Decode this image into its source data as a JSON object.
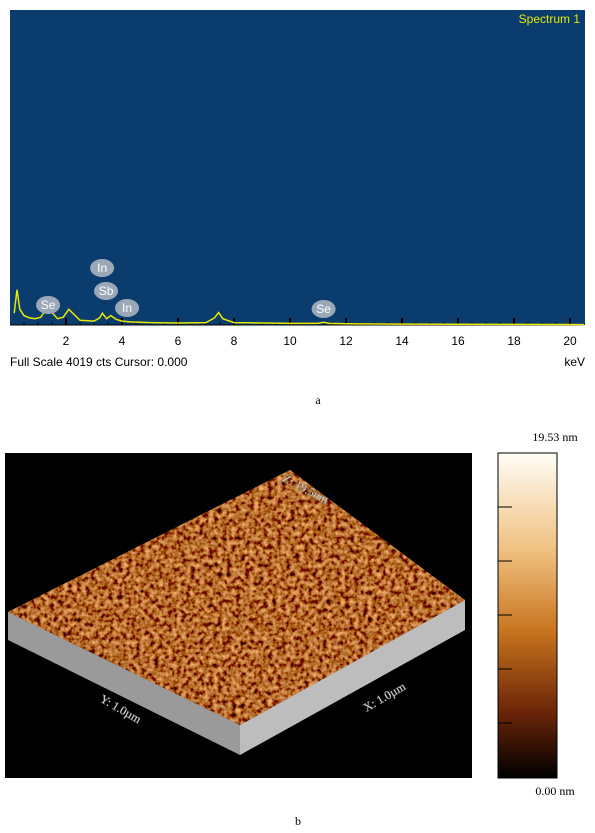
{
  "chart_data": {
    "type": "line",
    "title": "Spectrum 1",
    "footer": "Full Scale 4019 cts Cursor: 0.000",
    "x_label": "keV",
    "caption": "a",
    "x": [
      0.15,
      0.25,
      0.35,
      0.5,
      0.7,
      0.9,
      1.1,
      1.25,
      1.38,
      1.5,
      1.7,
      1.9,
      2.1,
      2.5,
      3.0,
      3.2,
      3.3,
      3.45,
      3.6,
      3.8,
      4.0,
      4.3,
      5,
      6,
      7,
      7.3,
      7.45,
      7.6,
      8,
      9,
      10,
      11,
      11.2,
      11.4,
      12,
      14,
      16,
      18,
      20,
      20.5
    ],
    "values": [
      150,
      450,
      200,
      120,
      90,
      80,
      100,
      180,
      300,
      160,
      80,
      100,
      200,
      60,
      50,
      90,
      150,
      80,
      120,
      70,
      50,
      40,
      30,
      25,
      30,
      90,
      160,
      80,
      30,
      25,
      20,
      20,
      35,
      20,
      15,
      12,
      10,
      8,
      6,
      5
    ],
    "color": "#e8e800",
    "xlim": [
      0,
      20.5
    ],
    "xticks": [
      2,
      4,
      6,
      8,
      10,
      12,
      14,
      16,
      18,
      20
    ],
    "ylim": [
      0,
      4019
    ],
    "annotations": [
      {
        "label": "Se",
        "x": 1.36
      },
      {
        "label": "In",
        "x": 3.29
      },
      {
        "label": "Sb",
        "x": 3.43
      },
      {
        "label": "In",
        "x": 4.18
      },
      {
        "label": "Se",
        "x": 11.2
      }
    ]
  },
  "afm_image": {
    "caption": "b",
    "z_label": "Z: 19.5nm",
    "y_label": "Y: 1.0µm",
    "x_label": "X: 1.0µm",
    "colorbar_max": "19.53 nm",
    "colorbar_min": "0.00 nm"
  }
}
